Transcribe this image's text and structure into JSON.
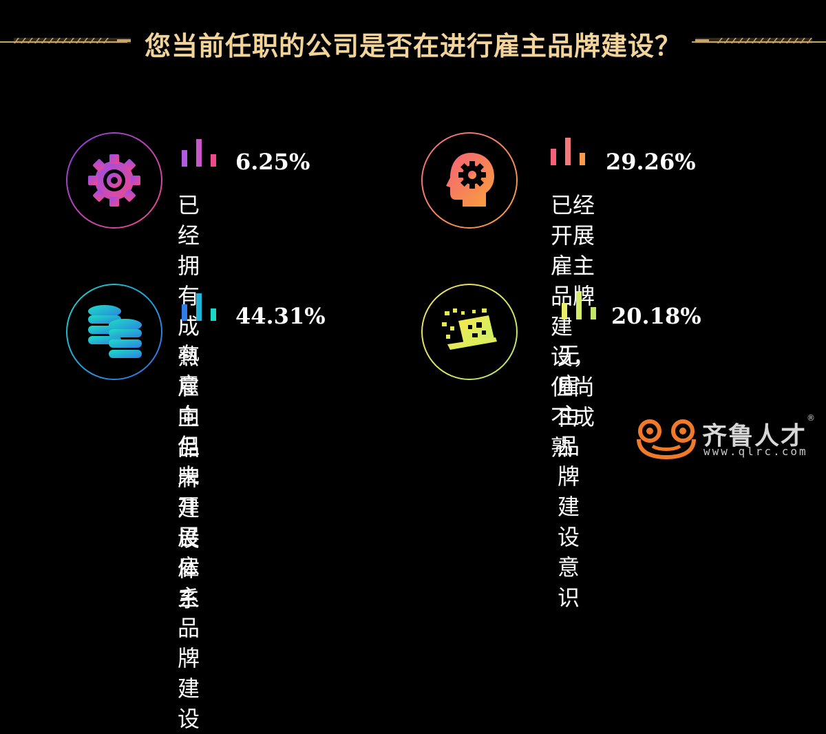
{
  "title": "您当前任职的公司是否在进行雇主品牌建设？",
  "items": [
    {
      "percent": "6.25%",
      "line1": "已经拥有成熟雇主",
      "line2": "品牌建设体系",
      "icon": "gear-icon"
    },
    {
      "percent": "29.26%",
      "line1": "已经开展雇主品牌",
      "line2": "建设，但尚不成熟",
      "icon": "head-gear-icon"
    },
    {
      "percent": "44.31%",
      "line1": "有意向但未开展雇",
      "line2": "主品牌建设",
      "icon": "database-icon"
    },
    {
      "percent": "20.18%",
      "line1": "无雇主品牌建设意识",
      "line2": "",
      "icon": "laptop-letters-icon"
    }
  ],
  "logo": {
    "name": "齐鲁人才",
    "url": "www.qlrc.com",
    "reg": "®"
  },
  "colors": {
    "gold": "#f2d39a",
    "purple": "#a955e0",
    "pink": "#f04a8a",
    "orange": "#f58a5a",
    "cyan": "#1ad7c7",
    "blue": "#2f7de6",
    "yellow": "#e8f06a"
  }
}
